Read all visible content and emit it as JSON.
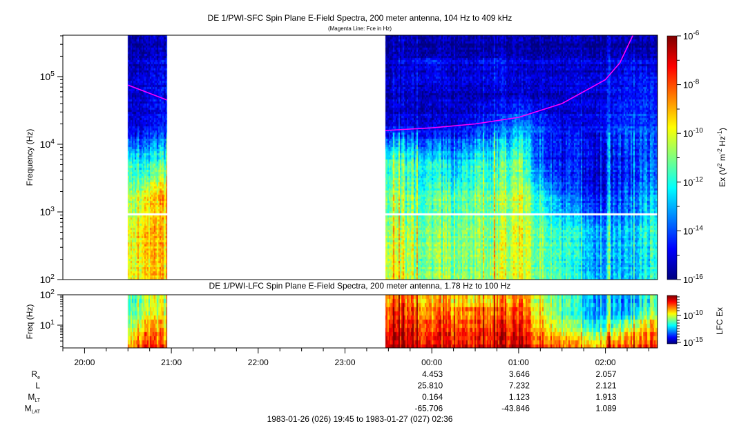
{
  "chart_data": [
    {
      "type": "heatmap",
      "title": "DE 1/PWI-SFC  Spin Plane E-Field Spectra, 200 meter antenna, 104 Hz to 409 kHz",
      "subtitle": "(Magenta Line: Fce in Hz)",
      "ylabel": "Frequency (Hz)",
      "yscale": "log",
      "ylim": [
        100,
        409000
      ],
      "y_ticks": [
        {
          "base": "10",
          "exp": "2",
          "value": 100
        },
        {
          "base": "10",
          "exp": "3",
          "value": 1000
        },
        {
          "base": "10",
          "exp": "4",
          "value": 10000
        },
        {
          "base": "10",
          "exp": "5",
          "value": 100000
        }
      ],
      "data_gap_hz": [
        890,
        1000
      ],
      "colorbar": {
        "label_prefix": "Ex (V",
        "label_parts": [
          "Ex (V",
          "2",
          " m",
          "-2",
          " Hz",
          "-1",
          ")"
        ],
        "scale": "log",
        "range_log10": [
          -16,
          -6
        ],
        "ticks": [
          {
            "base": "10",
            "exp": "-6"
          },
          {
            "base": "10",
            "exp": "-8"
          },
          {
            "base": "10",
            "exp": "-10"
          },
          {
            "base": "10",
            "exp": "-12"
          },
          {
            "base": "10",
            "exp": "-14"
          },
          {
            "base": "10",
            "exp": "-16"
          }
        ]
      },
      "freq_bands_log10": [
        2.0,
        2.5,
        3.0,
        3.5,
        4.0,
        4.5,
        5.0,
        5.6
      ],
      "segments": [
        {
          "times_min": [
            45,
            57,
            72
          ],
          "times_label": [
            "20:30",
            "20:42",
            "20:57"
          ],
          "intensity_log10": [
            [
              -9.8,
              -9.5,
              -9.3
            ],
            [
              -9.8,
              -9.4,
              -9.2
            ],
            [
              -10.5,
              -10.0,
              -8.8
            ],
            [
              -11.5,
              -12.5,
              -11.5
            ],
            [
              -15.0,
              -15.0,
              -14.3
            ],
            [
              -15.3,
              -15.2,
              -14.8
            ],
            [
              -15.4,
              -15.3,
              -15.0
            ],
            [
              -15.5,
              -15.5,
              -15.2
            ]
          ]
        },
        {
          "times_min": [
            223,
            240,
            255,
            270,
            285,
            300,
            315,
            330,
            345,
            360,
            375,
            390,
            405,
            411
          ],
          "times_label": [
            "23:28",
            "23:45",
            "00:00",
            "00:15",
            "00:30",
            "00:45",
            "01:00",
            "01:15",
            "01:30",
            "01:45",
            "02:00",
            "02:15",
            "02:30",
            "02:36"
          ],
          "intensity_log10": [
            [
              -10.0,
              -10.8,
              -11.0,
              -11.0,
              -11.0,
              -10.5,
              -10.0,
              -11.0,
              -12.0,
              -12.8,
              -13.0,
              -13.0,
              -12.2,
              -12.0
            ],
            [
              -10.5,
              -11.0,
              -11.0,
              -11.2,
              -11.0,
              -11.0,
              -10.0,
              -11.2,
              -12.2,
              -12.8,
              -13.2,
              -13.0,
              -12.0,
              -12.0
            ],
            [
              -11.0,
              -11.5,
              -11.5,
              -11.5,
              -11.2,
              -11.0,
              -10.2,
              -12.0,
              -14.0,
              -14.5,
              -14.5,
              -14.0,
              -13.0,
              -13.0
            ],
            [
              -11.5,
              -12.0,
              -12.2,
              -13.0,
              -12.0,
              -12.0,
              -11.0,
              -14.0,
              -15.0,
              -15.0,
              -15.0,
              -14.5,
              -13.8,
              -14.0
            ],
            [
              -15.0,
              -15.0,
              -15.0,
              -15.0,
              -14.5,
              -14.0,
              -13.0,
              -14.0,
              -15.0,
              -15.0,
              -14.5,
              -14.0,
              -14.0,
              -14.2
            ],
            [
              -15.5,
              -15.5,
              -15.5,
              -15.5,
              -15.5,
              -15.3,
              -15.3,
              -15.4,
              -15.5,
              -15.3,
              -15.0,
              -14.8,
              -14.5,
              -15.0
            ],
            [
              -15.5,
              -15.0,
              -14.5,
              -15.2,
              -15.0,
              -14.6,
              -15.2,
              -15.0,
              -15.3,
              -15.2,
              -15.2,
              -15.0,
              -15.0,
              -15.2
            ],
            [
              -15.6,
              -15.6,
              -15.6,
              -15.6,
              -15.6,
              -15.5,
              -15.5,
              -15.6,
              -15.6,
              -15.6,
              -15.5,
              -15.5,
              -15.5,
              -15.5
            ]
          ]
        }
      ],
      "fce_line": {
        "label": "Fce",
        "color": "#ff00ff",
        "segments": [
          {
            "times_min": [
              45,
              72
            ],
            "freq_hz": [
              75000,
              45000
            ]
          },
          {
            "times_min": [
              223,
              255,
              285,
              315,
              345,
              360,
              375,
              385,
              394
            ],
            "freq_hz": [
              16000,
              17500,
              20000,
              25000,
              40000,
              60000,
              90000,
              160000,
              409000
            ]
          }
        ]
      }
    },
    {
      "type": "heatmap",
      "title": "DE 1/PWI-LFC  Spin Plane E-Field Spectra, 200 meter antenna, 1.78 Hz to 100 Hz",
      "ylabel": "Freq (Hz)",
      "yscale": "log",
      "ylim": [
        1.78,
        100
      ],
      "y_ticks": [
        {
          "base": "10",
          "exp": "2",
          "value": 100
        },
        {
          "base": "10",
          "exp": "1",
          "value": 10
        }
      ],
      "colorbar": {
        "label": "LFC Ex",
        "scale": "log",
        "range_log10": [
          -15.3,
          -6.3
        ],
        "ticks": [
          {
            "base": "10",
            "exp": "-10"
          },
          {
            "base": "10",
            "exp": "-15"
          }
        ]
      },
      "freq_bands_log10": [
        0.25,
        0.75,
        1.25,
        2.0
      ],
      "segments": [
        {
          "times_min": [
            45,
            57,
            72
          ],
          "intensity_log10": [
            [
              -9.0,
              -8.0,
              -8.5
            ],
            [
              -10.5,
              -9.0,
              -9.0
            ],
            [
              -11.0,
              -10.5,
              -9.5
            ],
            [
              -11.0,
              -10.5,
              -10.0
            ]
          ]
        },
        {
          "times_min": [
            223,
            255,
            285,
            315,
            330,
            345,
            360,
            375,
            390,
            405,
            411
          ],
          "intensity_log10": [
            [
              -7.0,
              -7.5,
              -7.5,
              -7.0,
              -8.0,
              -9.0,
              -9.5,
              -9.0,
              -8.5,
              -8.0,
              -8.0
            ],
            [
              -7.5,
              -8.0,
              -8.0,
              -7.5,
              -9.0,
              -10.5,
              -11.5,
              -11.5,
              -10.5,
              -9.0,
              -9.0
            ],
            [
              -8.0,
              -8.5,
              -8.5,
              -8.0,
              -9.5,
              -11.5,
              -12.5,
              -12.5,
              -13.0,
              -11.0,
              -11.0
            ],
            [
              -8.5,
              -9.0,
              -9.5,
              -8.5,
              -10.0,
              -11.5,
              -12.5,
              -12.5,
              -13.0,
              -11.5,
              -11.0
            ]
          ]
        }
      ]
    }
  ],
  "time_axis": {
    "start_min_label": "19:45",
    "span_min": 411,
    "hour_labels": [
      "20:00",
      "21:00",
      "22:00",
      "23:00",
      "00:00",
      "01:00",
      "02:00"
    ],
    "hour_offsets_min": [
      15,
      75,
      135,
      195,
      255,
      315,
      375
    ],
    "minor_tick_min": 15
  },
  "ephemeris": {
    "rows": [
      {
        "label": "R",
        "sub": "e",
        "values": [
          "4.453",
          "3.646",
          "2.057"
        ]
      },
      {
        "label": "L",
        "sub": "",
        "values": [
          "25.810",
          "7.232",
          "2.121"
        ]
      },
      {
        "label": "M",
        "sub": "LT",
        "values": [
          "0.164",
          "1.123",
          "1.913"
        ]
      },
      {
        "label": "M",
        "sub": "LAT",
        "values": [
          "-65.706",
          "-43.846",
          "1.089"
        ]
      }
    ],
    "columns_at": [
      "00:00",
      "01:00",
      "02:00"
    ],
    "columns_offset_min": [
      255,
      315,
      375
    ]
  },
  "date_range": "1983-01-26 (026) 19:45 to 1983-01-27 (027) 02:36"
}
